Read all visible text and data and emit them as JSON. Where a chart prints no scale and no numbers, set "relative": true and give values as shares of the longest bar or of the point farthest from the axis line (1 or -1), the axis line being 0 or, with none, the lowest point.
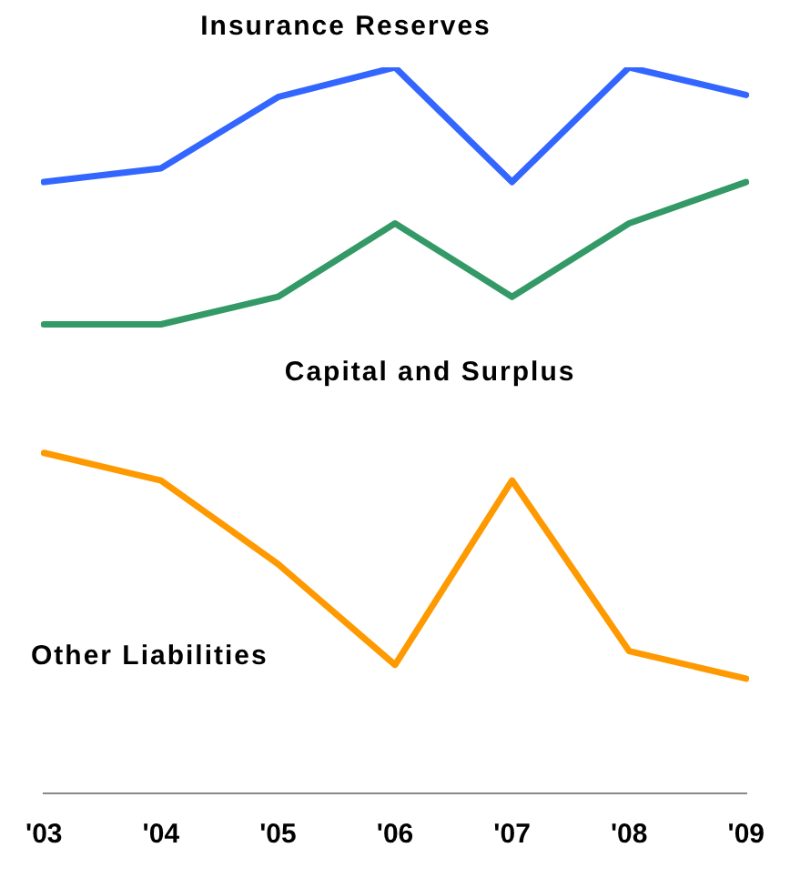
{
  "chart_data": {
    "type": "line",
    "relative": true,
    "categories": [
      "'03",
      "'04",
      "'05",
      "'06",
      "'07",
      "'08",
      "'09"
    ],
    "grid": false,
    "legend": false,
    "marker": "none",
    "line_style": "solid",
    "series": [
      {
        "name": "Insurance Reserves",
        "color": "#3366ff",
        "values": [
          0.842,
          0.861,
          0.959,
          1,
          0.842,
          1,
          0.962
        ]
      },
      {
        "name": "Capital and Surplus",
        "color": "#339966",
        "values": [
          0.646,
          0.646,
          0.684,
          0.785,
          0.684,
          0.785,
          0.842
        ]
      },
      {
        "name": "Other Liabilities",
        "color": "#ff9900",
        "values": [
          0.469,
          0.431,
          0.316,
          0.177,
          0.431,
          0.196,
          0.158
        ]
      }
    ]
  }
}
